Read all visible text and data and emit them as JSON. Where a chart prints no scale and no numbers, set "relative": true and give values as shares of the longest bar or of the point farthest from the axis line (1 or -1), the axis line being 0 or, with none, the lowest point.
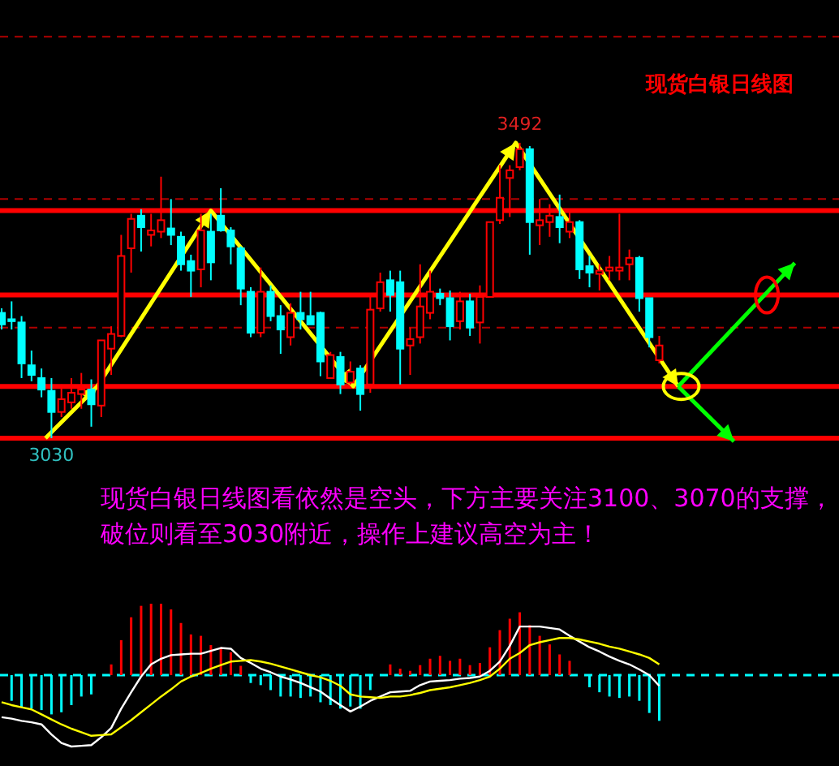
{
  "chart_data": [
    {
      "type": "candlestick",
      "title": "现货白银日线图",
      "categories": [
        null,
        null,
        null,
        null,
        null,
        null,
        null,
        null,
        null,
        null,
        null,
        null,
        null,
        null,
        null,
        null,
        null,
        null,
        null,
        null,
        null,
        null,
        null,
        null,
        null,
        null,
        null,
        null,
        null,
        null,
        null,
        null,
        null,
        null,
        null,
        null,
        null,
        null,
        null,
        null,
        null,
        null,
        null,
        null,
        null,
        null,
        null,
        null,
        null,
        null,
        null,
        null,
        null,
        null,
        null,
        null,
        null,
        null,
        null,
        null,
        null,
        null,
        null,
        null,
        null,
        null,
        null
      ],
      "ohlc": [
        [
          3226,
          3233,
          3200,
          3208
        ],
        [
          3216,
          3244,
          3200,
          3213
        ],
        [
          3211,
          3221,
          3124,
          3147
        ],
        [
          3144,
          3167,
          3119,
          3129
        ],
        [
          3124,
          3139,
          3094,
          3106
        ],
        [
          3104,
          3124,
          3030,
          3071
        ],
        [
          3071,
          3114,
          3063,
          3091
        ],
        [
          3086,
          3124,
          3076,
          3101
        ],
        [
          3099,
          3132,
          3076,
          3106
        ],
        [
          3106,
          3122,
          3048,
          3083
        ],
        [
          3081,
          3183,
          3063,
          3183
        ],
        [
          3170,
          3205,
          3129,
          3193
        ],
        [
          3190,
          3348,
          3188,
          3315
        ],
        [
          3327,
          3381,
          3289,
          3373
        ],
        [
          3378,
          3388,
          3322,
          3360
        ],
        [
          3348,
          3381,
          3330,
          3355
        ],
        [
          3353,
          3439,
          3343,
          3371
        ],
        [
          3358,
          3404,
          3332,
          3348
        ],
        [
          3345,
          3353,
          3292,
          3302
        ],
        [
          3307,
          3317,
          3251,
          3292
        ],
        [
          3294,
          3381,
          3266,
          3355
        ],
        [
          3353,
          3381,
          3277,
          3305
        ],
        [
          3378,
          3421,
          3353,
          3355
        ],
        [
          3355,
          3360,
          3302,
          3330
        ],
        [
          3327,
          3330,
          3238,
          3264
        ],
        [
          3259,
          3266,
          3188,
          3195
        ],
        [
          3195,
          3297,
          3188,
          3259
        ],
        [
          3259,
          3269,
          3213,
          3221
        ],
        [
          3221,
          3238,
          3162,
          3200
        ],
        [
          3188,
          3241,
          3175,
          3226
        ],
        [
          3226,
          3259,
          3200,
          3216
        ],
        [
          3221,
          3259,
          3208,
          3208
        ],
        [
          3226,
          3228,
          3127,
          3150
        ],
        [
          3124,
          3165,
          3124,
          3160
        ],
        [
          3157,
          3165,
          3099,
          3114
        ],
        [
          3117,
          3150,
          3114,
          3134
        ],
        [
          3139,
          3144,
          3073,
          3099
        ],
        [
          3114,
          3251,
          3101,
          3231
        ],
        [
          3233,
          3289,
          3228,
          3274
        ],
        [
          3277,
          3292,
          3228,
          3254
        ],
        [
          3274,
          3292,
          3114,
          3170
        ],
        [
          3175,
          3203,
          3129,
          3185
        ],
        [
          3188,
          3302,
          3178,
          3236
        ],
        [
          3226,
          3292,
          3216,
          3259
        ],
        [
          3256,
          3264,
          3238,
          3249
        ],
        [
          3249,
          3261,
          3183,
          3205
        ],
        [
          3213,
          3259,
          3200,
          3244
        ],
        [
          3244,
          3256,
          3190,
          3203
        ],
        [
          3211,
          3269,
          3178,
          3251
        ],
        [
          3251,
          3368,
          3251,
          3368
        ],
        [
          3371,
          3457,
          3365,
          3406
        ],
        [
          3437,
          3457,
          3376,
          3449
        ],
        [
          3454,
          3492,
          3449,
          3482
        ],
        [
          3482,
          3487,
          3317,
          3368
        ],
        [
          3363,
          3404,
          3332,
          3371
        ],
        [
          3368,
          3396,
          3345,
          3378
        ],
        [
          3376,
          3411,
          3335,
          3360
        ],
        [
          3353,
          3386,
          3343,
          3368
        ],
        [
          3368,
          3371,
          3279,
          3294
        ],
        [
          3299,
          3315,
          3266,
          3289
        ],
        [
          3287,
          3302,
          3261,
          3292
        ],
        [
          3292,
          3315,
          3277,
          3297
        ],
        [
          3292,
          3381,
          3277,
          3297
        ],
        [
          3302,
          3325,
          3277,
          3312
        ],
        [
          3312,
          3315,
          3228,
          3249
        ],
        [
          3249,
          3249,
          3172,
          3188
        ],
        [
          3152,
          3190,
          3147,
          3175
        ]
      ],
      "colors": [
        "#00ffff",
        "#00ffff",
        "#00ffff",
        "#00ffff",
        "#00ffff",
        "#00ffff",
        "#ff0000",
        "#ff0000",
        "#ff0000",
        "#00ffff",
        "#ff0000",
        "#ff0000",
        "#ff0000",
        "#ff0000",
        "#00ffff",
        "#ff0000",
        "#ff0000",
        "#00ffff",
        "#00ffff",
        "#00ffff",
        "#ff0000",
        "#00ffff",
        "#00ffff",
        "#00ffff",
        "#00ffff",
        "#00ffff",
        "#ff0000",
        "#00ffff",
        "#00ffff",
        "#ff0000",
        "#00ffff",
        "#00ffff",
        "#00ffff",
        "#ff0000",
        "#00ffff",
        "#ff0000",
        "#00ffff",
        "#ff0000",
        "#ff0000",
        "#00ffff",
        "#00ffff",
        "#ff0000",
        "#ff0000",
        "#ff0000",
        "#00ffff",
        "#00ffff",
        "#ff0000",
        "#00ffff",
        "#ff0000",
        "#ff0000",
        "#ff0000",
        "#ff0000",
        "#ff0000",
        "#00ffff",
        "#ff0000",
        "#ff0000",
        "#00ffff",
        "#ff0000",
        "#00ffff",
        "#00ffff",
        "#ff0000",
        "#ff0000",
        "#ff0000",
        "#ff0000",
        "#00ffff",
        "#00ffff",
        "#ff0000"
      ],
      "ref_lines": [
        {
          "axis": "y",
          "value": 3658,
          "color": "#b00000",
          "line_style": "dashed"
        },
        {
          "axis": "y",
          "value": 3404,
          "color": "#b00000",
          "line_style": "dashed"
        },
        {
          "axis": "y",
          "value": 3203,
          "color": "#b00000",
          "line_style": "dashed"
        },
        {
          "axis": "y",
          "value": 3386,
          "color": "#ff0000",
          "line_style": "solid"
        },
        {
          "axis": "y",
          "value": 3254,
          "color": "#ff0000",
          "line_style": "solid"
        },
        {
          "axis": "y",
          "value": 3111,
          "color": "#ff0000",
          "line_style": "solid"
        },
        {
          "axis": "y",
          "value": 3030,
          "color": "#ff0000",
          "line_style": "solid"
        }
      ],
      "annotations": [
        {
          "text": "3492",
          "y": 3492
        },
        {
          "text": "3030",
          "y": 3030
        },
        "现货白银日线图看依然是空头，下方主要关注3100、3070的支撑，破位则看至3030附近，操作上建议高空为主！"
      ]
    },
    {
      "type": "bar",
      "relative": true,
      "ref_lines": [
        {
          "axis": "y",
          "value": 0,
          "color": "#00ffff",
          "line_style": "dashed"
        }
      ],
      "categories": [
        null,
        null,
        null,
        null,
        null,
        null,
        null,
        null,
        null,
        null,
        null,
        null,
        null,
        null,
        null,
        null,
        null,
        null,
        null,
        null,
        null,
        null,
        null,
        null,
        null,
        null,
        null,
        null,
        null,
        null,
        null,
        null,
        null,
        null,
        null,
        null,
        null,
        null,
        null,
        null,
        null,
        null,
        null,
        null,
        null,
        null,
        null,
        null,
        null,
        null,
        null,
        null,
        null,
        null,
        null,
        null,
        null,
        null,
        null,
        null,
        null,
        null,
        null,
        null,
        null,
        null,
        null
      ],
      "series": [
        {
          "type": "bar",
          "values": [
            null,
            -0.36,
            -0.45,
            -0.47,
            -0.49,
            -0.55,
            -0.52,
            -0.42,
            -0.3,
            -0.27,
            0,
            0.15,
            0.49,
            0.81,
            0.97,
            1,
            1,
            0.92,
            0.73,
            0.57,
            0.55,
            0.42,
            0.39,
            0.32,
            0.13,
            -0.11,
            -0.14,
            -0.21,
            -0.3,
            -0.3,
            -0.32,
            -0.3,
            -0.38,
            -0.42,
            -0.47,
            -0.44,
            -0.47,
            -0.21,
            0,
            0.15,
            0.09,
            0.06,
            0.14,
            0.23,
            0.27,
            0.2,
            0.23,
            0.14,
            0.17,
            0.39,
            0.63,
            0.79,
            0.88,
            0.7,
            0.55,
            0.43,
            0.29,
            0.2,
            0,
            -0.17,
            -0.24,
            -0.3,
            -0.32,
            -0.3,
            -0.36,
            -0.53,
            -0.64
          ],
          "colors": [
            "#00ffff",
            "#00ffff",
            "#00ffff",
            "#00ffff",
            "#00ffff",
            "#00ffff",
            "#00ffff",
            "#00ffff",
            "#00ffff",
            "#00ffff",
            "#00ffff",
            "#ff0000",
            "#ff0000",
            "#ff0000",
            "#ff0000",
            "#ff0000",
            "#ff0000",
            "#ff0000",
            "#ff0000",
            "#ff0000",
            "#ff0000",
            "#ff0000",
            "#ff0000",
            "#ff0000",
            "#ff0000",
            "#00ffff",
            "#00ffff",
            "#00ffff",
            "#00ffff",
            "#00ffff",
            "#00ffff",
            "#00ffff",
            "#00ffff",
            "#00ffff",
            "#00ffff",
            "#00ffff",
            "#00ffff",
            "#00ffff",
            "#00ffff",
            "#ff0000",
            "#ff0000",
            "#ff0000",
            "#ff0000",
            "#ff0000",
            "#ff0000",
            "#ff0000",
            "#ff0000",
            "#ff0000",
            "#ff0000",
            "#ff0000",
            "#ff0000",
            "#ff0000",
            "#ff0000",
            "#ff0000",
            "#ff0000",
            "#ff0000",
            "#ff0000",
            "#ff0000",
            "#00ffff",
            "#00ffff",
            "#00ffff",
            "#00ffff",
            "#00ffff",
            "#00ffff",
            "#00ffff",
            "#00ffff",
            "#00ffff"
          ]
        },
        {
          "type": "line",
          "color": "#ffffff",
          "values": [
            -0.59,
            -0.61,
            -0.64,
            -0.66,
            -0.69,
            -0.83,
            -0.95,
            -1,
            -0.99,
            -0.98,
            -0.87,
            -0.74,
            -0.47,
            -0.24,
            -0.02,
            0.15,
            0.23,
            0.28,
            0.29,
            0.3,
            0.3,
            0.34,
            0.38,
            0.37,
            0.24,
            0.17,
            0.09,
            0.04,
            -0.02,
            -0.06,
            -0.11,
            -0.17,
            -0.23,
            -0.33,
            -0.42,
            -0.51,
            -0.44,
            -0.36,
            -0.3,
            -0.24,
            -0.23,
            -0.22,
            -0.14,
            -0.09,
            -0.08,
            -0.07,
            -0.05,
            -0.04,
            -0.02,
            0.06,
            0.19,
            0.41,
            0.68,
            0.68,
            0.68,
            0.66,
            0.64,
            0.55,
            0.47,
            0.39,
            0.33,
            0.26,
            0.2,
            0.15,
            0.08,
            0,
            -0.15
          ]
        },
        {
          "type": "line",
          "color": "#ffff00",
          "values": [
            -0.38,
            -0.42,
            -0.45,
            -0.48,
            -0.55,
            -0.62,
            -0.69,
            -0.75,
            -0.8,
            -0.85,
            -0.84,
            -0.83,
            -0.73,
            -0.63,
            -0.52,
            -0.41,
            -0.3,
            -0.2,
            -0.09,
            -0.02,
            0.03,
            0.09,
            0.14,
            0.19,
            0.2,
            0.21,
            0.19,
            0.16,
            0.12,
            0.08,
            0.04,
            0,
            -0.03,
            -0.08,
            -0.15,
            -0.27,
            -0.3,
            -0.31,
            -0.32,
            -0.3,
            -0.3,
            -0.28,
            -0.25,
            -0.21,
            -0.19,
            -0.17,
            -0.14,
            -0.11,
            -0.07,
            -0.02,
            0.09,
            0.23,
            0.31,
            0.42,
            0.46,
            0.49,
            0.52,
            0.52,
            0.5,
            0.47,
            0.44,
            0.4,
            0.37,
            0.33,
            0.29,
            0.24,
            0.15
          ]
        }
      ]
    }
  ]
}
